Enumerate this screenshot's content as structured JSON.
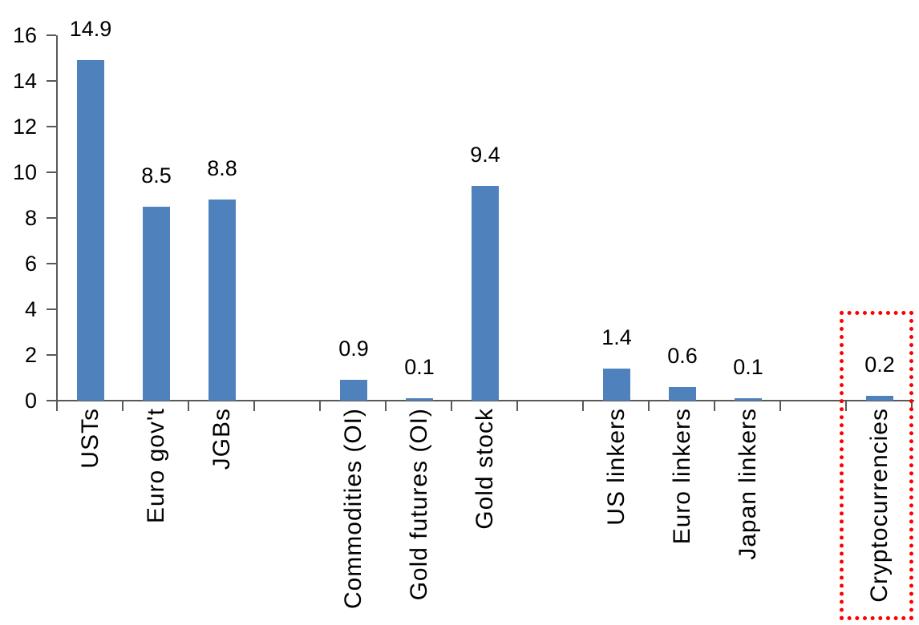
{
  "chart_data": {
    "type": "bar",
    "title": "",
    "xlabel": "",
    "ylabel": "",
    "categories": [
      "USTs",
      "Euro gov't",
      "JGBs",
      "",
      "Commodities (OI)",
      "Gold futures (OI)",
      "Gold stock",
      "",
      "US linkers",
      "Euro linkers",
      "Japan linkers",
      "",
      "Cryptocurrencies"
    ],
    "values": [
      14.9,
      8.5,
      8.8,
      null,
      0.9,
      0.1,
      9.4,
      null,
      1.4,
      0.6,
      0.1,
      null,
      0.2
    ],
    "data_labels": [
      "14.9",
      "8.5",
      "8.8",
      null,
      "0.9",
      "0.1",
      "9.4",
      null,
      "1.4",
      "0.6",
      "0.1",
      null,
      "0.2"
    ],
    "ylim": [
      0,
      16
    ],
    "ytick_interval": 2,
    "ytick_labels": [
      "0",
      "2",
      "4",
      "6",
      "8",
      "10",
      "12",
      "14",
      "16"
    ],
    "grid": false,
    "legend": false,
    "bar_color": "#4F81BD",
    "axis_color": "#595959",
    "text_color": "#000000",
    "highlight": {
      "category": "Cryptocurrencies",
      "marker": "red-dotted-rectangle",
      "color": "#FF0000"
    }
  }
}
